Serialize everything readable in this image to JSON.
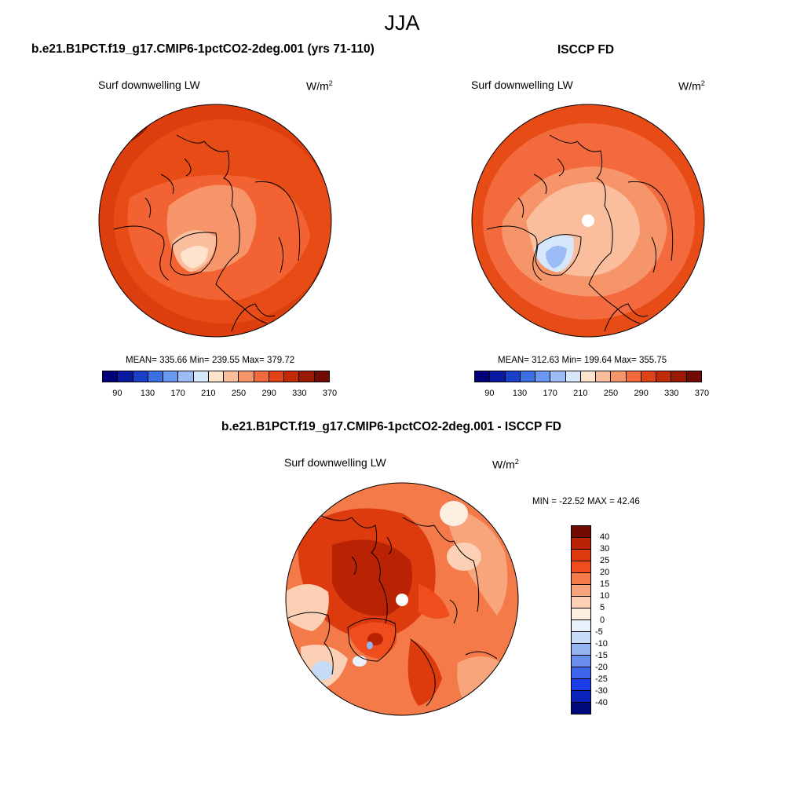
{
  "season": "JJA",
  "panels": [
    {
      "title": "b.e21.B1PCT.f19_g17.CMIP6-1pctCO2-2deg.001 (yrs 71-110)",
      "variable": "Surf downwelling LW",
      "units_base": "W/m",
      "units_exp": "2",
      "stats": "MEAN= 335.66  Min= 239.55  Max= 379.72"
    },
    {
      "title": "ISCCP FD",
      "variable": "Surf downwelling LW",
      "units_base": "W/m",
      "units_exp": "2",
      "stats": "MEAN= 312.63  Min= 199.64  Max= 355.75"
    },
    {
      "title": "b.e21.B1PCT.f19_g17.CMIP6-1pctCO2-2deg.001 - ISCCP FD",
      "variable": "Surf downwelling LW",
      "units_base": "W/m",
      "units_exp": "2",
      "stats": "MIN = -22.52 MAX =  42.46"
    }
  ],
  "abs_colorbar": {
    "colors": [
      "#00007a",
      "#0a1aa0",
      "#1a3fc8",
      "#3b6fe6",
      "#6a98f0",
      "#9bbcf5",
      "#d6e6fb",
      "#fde2cc",
      "#fbbe9c",
      "#f7956a",
      "#f26a3e",
      "#e04216",
      "#c02a06",
      "#9a1804",
      "#720c02"
    ],
    "tick_labels": [
      "90",
      "130",
      "170",
      "210",
      "250",
      "290",
      "330",
      "370"
    ]
  },
  "diff_colorbar": {
    "colors": [
      "#720c02",
      "#b92203",
      "#dd3a0e",
      "#f04d1e",
      "#f47a4a",
      "#f8a57c",
      "#fbd0b4",
      "#fdeee2",
      "#e8f0fb",
      "#c6dbf6",
      "#93b4f0",
      "#6a8ff0",
      "#3d66ec",
      "#1c3ee6",
      "#0a22b8",
      "#000a7a"
    ],
    "tick_labels": [
      "40",
      "30",
      "25",
      "20",
      "15",
      "10",
      "5",
      "0",
      "-5",
      "-10",
      "-15",
      "-20",
      "-25",
      "-30",
      "-40"
    ]
  }
}
